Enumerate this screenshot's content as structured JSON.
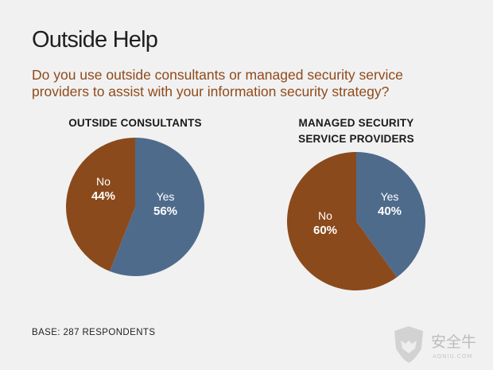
{
  "title": "Outside Help",
  "subtitle": "Do you use outside consultants or managed security service providers to assist with your information security strategy?",
  "base": "BASE: 287 RESPONDENTS",
  "watermark": {
    "text": "安全牛",
    "subtext": "AQNIU.COM"
  },
  "colors": {
    "yes": "#4f6b8c",
    "no": "#8b4a1c"
  },
  "chart_data": [
    {
      "type": "pie",
      "title_lines": [
        "OUTSIDE CONSULTANTS"
      ],
      "slices": [
        {
          "label": "Yes",
          "value": 56,
          "display": "56%"
        },
        {
          "label": "No",
          "value": 44,
          "display": "44%"
        }
      ]
    },
    {
      "type": "pie",
      "title_lines": [
        "MANAGED SECURITY",
        "SERVICE PROVIDERS"
      ],
      "slices": [
        {
          "label": "Yes",
          "value": 40,
          "display": "40%"
        },
        {
          "label": "No",
          "value": 60,
          "display": "60%"
        }
      ]
    }
  ]
}
